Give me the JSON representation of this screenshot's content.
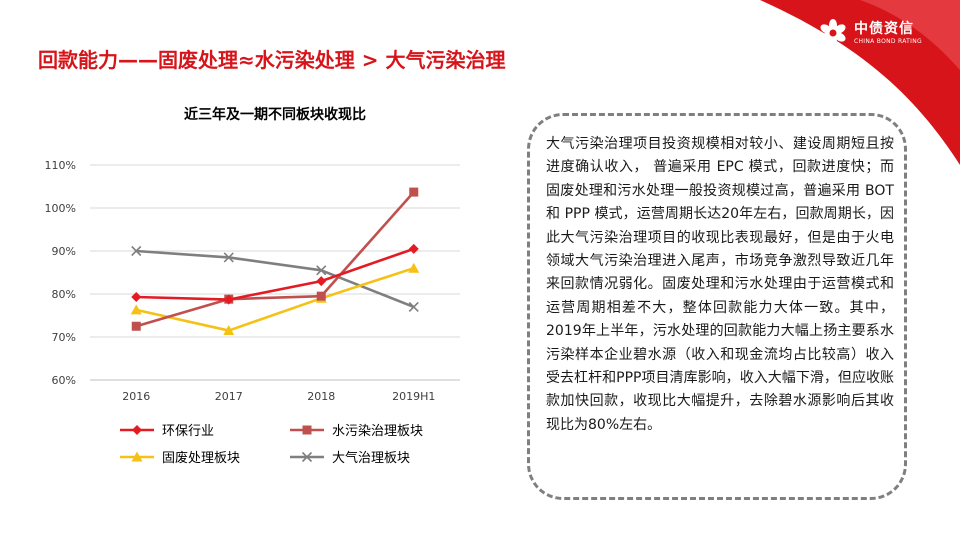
{
  "brand": {
    "name_cn": "中债资信",
    "name_en": "CHINA BOND RATING",
    "color": "#d7141a"
  },
  "page_title": "回款能力——固废处理≈水污染处理 > 大气污染治理",
  "note": "大气污染治理项目投资规模相对较小、建设周期短且按进度确认收入， 普遍采用 EPC 模式，回款进度快；而固废处理和污水处理一般投资规模过高，普遍采用 BOT 和 PPP 模式，运营周期长达20年左右，回款周期长，因此大气污染治理项目的收现比表现最好，但是由于火电领域大气污染治理进入尾声，市场竞争激烈导致近几年来回款情况弱化。固废处理和污水处理由于运营模式和运营周期相差不大，整体回款能力大体一致。其中，2019年上半年，污水处理的回款能力大幅上扬主要系水污染样本企业碧水源（收入和现金流均占比较高）收入受去杠杆和PPP项目清库影响，收入大幅下滑，但应收账款加快回款，收现比大幅提升，去除碧水源影响后其收现比为80%左右。",
  "chart_data": {
    "type": "line",
    "title": "近三年及一期不同板块收现比",
    "categories": [
      "2016",
      "2017",
      "2018",
      "2019H1"
    ],
    "ylim": [
      60,
      110
    ],
    "yticks": [
      "60%",
      "70%",
      "80%",
      "90%",
      "100%",
      "110%"
    ],
    "grid": true,
    "legend_position": "bottom",
    "series": [
      {
        "name": "环保行业",
        "values": [
          79.3,
          78.7,
          83.0,
          90.5
        ],
        "color": "#e31b23",
        "marker": "diamond"
      },
      {
        "name": "水污染治理板块",
        "values": [
          72.5,
          78.8,
          79.5,
          103.7
        ],
        "color": "#c0504d",
        "marker": "square"
      },
      {
        "name": "固废处理板块",
        "values": [
          76.3,
          71.5,
          79.0,
          86.0
        ],
        "color": "#f5c116",
        "marker": "triangle"
      },
      {
        "name": "大气治理板块",
        "values": [
          90.0,
          88.5,
          85.5,
          77.0
        ],
        "color": "#7f7f7f",
        "marker": "x"
      }
    ]
  }
}
